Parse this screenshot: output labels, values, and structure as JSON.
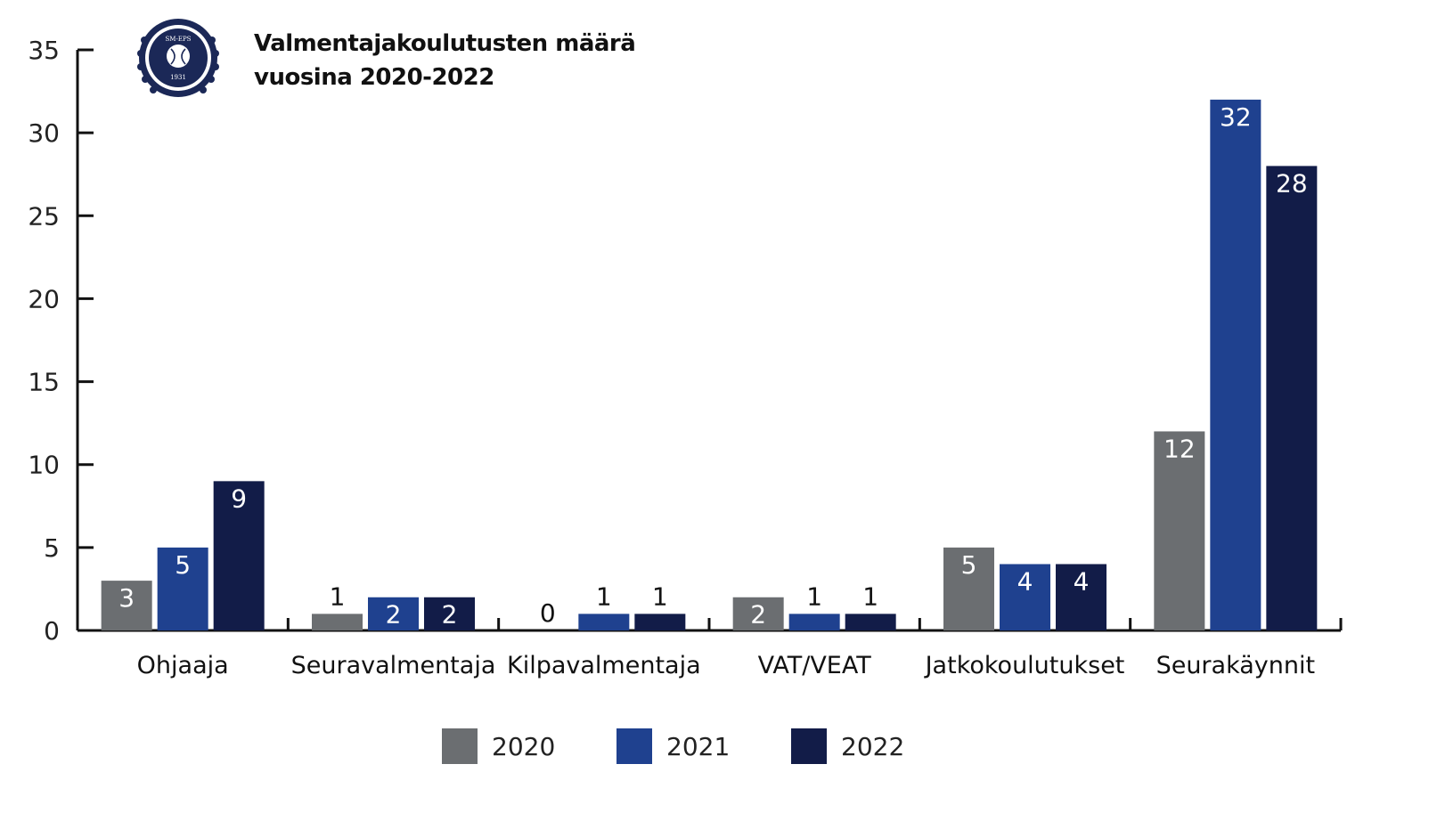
{
  "chart_data": {
    "type": "bar",
    "title_lines": [
      "Valmentajakoulutusten määrä",
      "vuosina 2020-2022"
    ],
    "logo": {
      "name": "club-emblem",
      "text_top": "SM-EPS",
      "text_bottom": "1931"
    },
    "categories": [
      "Ohjaaja",
      "Seuravalmentaja",
      "Kilpavalmentaja",
      "VAT/VEAT",
      "Jatkokoulutukset",
      "Seurakäynnit"
    ],
    "series": [
      {
        "name": "2020",
        "color": "#6b6e71",
        "values": [
          3,
          1,
          0,
          2,
          5,
          12
        ]
      },
      {
        "name": "2021",
        "color": "#1f418f",
        "values": [
          5,
          2,
          1,
          1,
          4,
          32
        ]
      },
      {
        "name": "2022",
        "color": "#121c48",
        "values": [
          9,
          2,
          1,
          1,
          4,
          28
        ]
      }
    ],
    "ylim": [
      0,
      35
    ],
    "yticks": [
      0,
      5,
      10,
      15,
      20,
      25,
      30,
      35
    ],
    "xlabel": "",
    "ylabel": "",
    "grid": false,
    "legend_position": "bottom-center",
    "data_labels": true
  }
}
